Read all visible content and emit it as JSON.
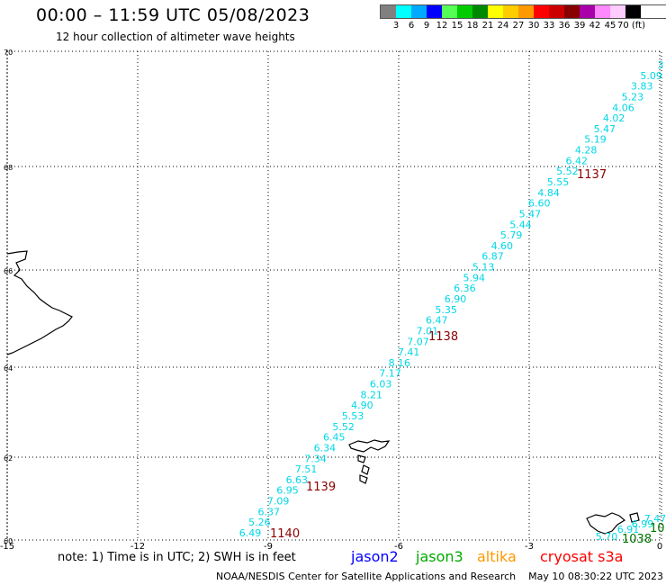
{
  "header": {
    "title": "00:00 – 11:59 UTC 05/08/2023",
    "subtitle": "12 hour collection of altimeter wave heights"
  },
  "legend": {
    "labels": [
      "3",
      "6",
      "9",
      "12",
      "15",
      "18",
      "21",
      "24",
      "27",
      "30",
      "33",
      "36",
      "39",
      "42",
      "45",
      "70 (ft)"
    ],
    "colors": [
      "#808080",
      "#00ffff",
      "#00aaff",
      "#0000ff",
      "#55ff55",
      "#00cc00",
      "#008800",
      "#ffff00",
      "#ffcc00",
      "#ff9900",
      "#ff0000",
      "#cc0000",
      "#880000",
      "#aa00aa",
      "#ff88ff",
      "#ffccff",
      "#000000"
    ]
  },
  "axes": {
    "lon_ticks": [
      "-15",
      "-12",
      "-9",
      "-6",
      "-3",
      "0"
    ],
    "lat_ticks": [
      "70",
      "68",
      "66",
      "64",
      "62",
      "60"
    ]
  },
  "track": {
    "color": "#00d7e6",
    "values": [
      "3",
      "5.09",
      "3.83",
      "5.23",
      "4.06",
      "4.02",
      "5.47",
      "5.19",
      "4.28",
      "6.42",
      "5.52",
      "5.55",
      "4.84",
      "6.60",
      "5.47",
      "5.44",
      "5.79",
      "4.60",
      "6.87",
      "5.13",
      "5.94",
      "6.36",
      "6.90",
      "5.35",
      "6.47",
      "7.01",
      "7.07",
      "7.41",
      "8.16",
      "7.17",
      "6.03",
      "8.21",
      "4.90",
      "5.53",
      "5.52",
      "6.45",
      "6.34",
      "7.34",
      "7.51",
      "6.63",
      "6.95",
      "7.09",
      "6.37",
      "5.26",
      "6.49"
    ],
    "east_values": [
      "7.47",
      "6.99",
      "6.91",
      "5.70"
    ]
  },
  "time_labels": {
    "color": "#8b0000",
    "items": [
      "1137",
      "1138",
      "1139",
      "1140"
    ]
  },
  "green_labels": {
    "color": "#007700",
    "items": [
      "1038",
      "10"
    ]
  },
  "footer": {
    "note": "note: 1) Time is in UTC; 2) SWH is in feet",
    "credit": "NOAA/NESDIS Center for Satellite Applications and Research    May 10 08:30:22 UTC 2023",
    "satellites": [
      {
        "name": "jason2",
        "color": "#0000ff"
      },
      {
        "name": "jason3",
        "color": "#00aa00"
      },
      {
        "name": "altika",
        "color": "#ff9900"
      },
      {
        "name": "cryosat s3a",
        "color": "#ff0000"
      }
    ]
  }
}
